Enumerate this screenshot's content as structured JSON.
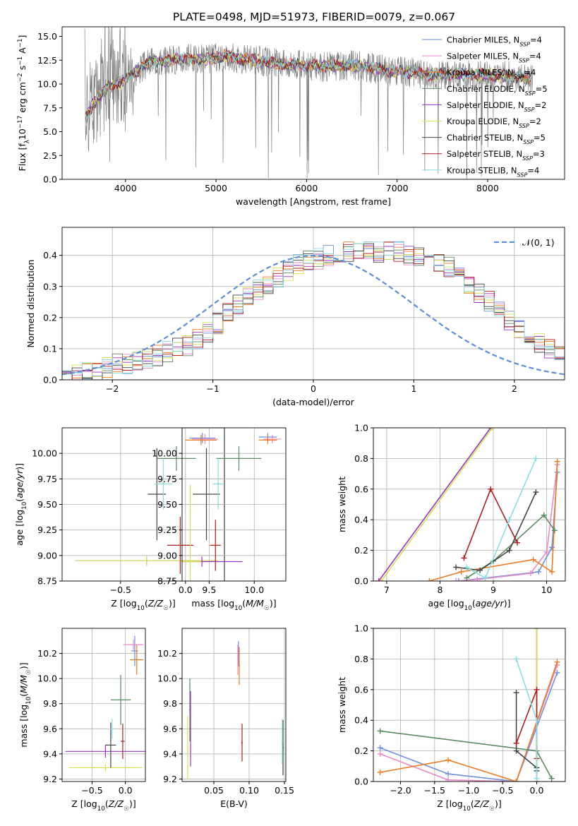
{
  "figure_title": "PLATE=0498, MJD=51973, FIBERID=0079, z=0.067",
  "colors": {
    "Chabrier MILES": "#6a8fe0",
    "Salpeter MILES": "#e88ac8",
    "Kroupa MILES": "#ee7a22",
    "Chabrier ELODIE": "#5a8a5e",
    "Salpeter ELODIE": "#9a32c8",
    "Kroupa ELODIE": "#d7e050",
    "Chabrier STELIB": "#444444",
    "Salpeter STELIB": "#b21a1a",
    "Kroupa STELIB": "#88dde0",
    "data": "#808080",
    "normal": "#5b8fd9"
  },
  "chart_data": [
    {
      "type": "line",
      "id": "spectrum",
      "xlabel": "wavelength [Angstrom, rest frame]",
      "ylabel": "Flux [f_λ10^-17 erg cm^-2 s^-1 A^-1]",
      "xlim": [
        3300,
        8850
      ],
      "ylim": [
        0,
        16
      ],
      "x_ticks": [
        4000,
        5000,
        6000,
        7000,
        8000
      ],
      "y_ticks": [
        0.0,
        2.5,
        5.0,
        7.5,
        10.0,
        12.5,
        15.0
      ],
      "legend_position": "right",
      "legend": [
        {
          "name": "Chabrier MILES",
          "nssp": "4"
        },
        {
          "name": "Salpeter MILES",
          "nssp": "4"
        },
        {
          "name": "Kroupa MILES",
          "nssp": "4"
        },
        {
          "name": "Chabrier ELODIE",
          "nssp": "5"
        },
        {
          "name": "Salpeter ELODIE",
          "nssp": "2"
        },
        {
          "name": "Kroupa ELODIE",
          "nssp": "2"
        },
        {
          "name": "Chabrier STELIB",
          "nssp": "5"
        },
        {
          "name": "Salpeter STELIB",
          "nssp": "3"
        },
        {
          "name": "Kroupa STELIB",
          "nssp": "4"
        }
      ],
      "continuum": [
        [
          3550,
          6.3
        ],
        [
          3650,
          8.0
        ],
        [
          3800,
          9.7
        ],
        [
          3950,
          10.2
        ],
        [
          4100,
          11.2
        ],
        [
          4300,
          12.4
        ],
        [
          4600,
          12.6
        ],
        [
          4900,
          12.6
        ],
        [
          5100,
          12.9
        ],
        [
          5400,
          12.5
        ],
        [
          5800,
          12.1
        ],
        [
          6200,
          11.8
        ],
        [
          6500,
          12.0
        ],
        [
          6700,
          11.7
        ],
        [
          7000,
          11.3
        ],
        [
          7400,
          11.0
        ],
        [
          7700,
          11.0
        ],
        [
          8100,
          10.9
        ],
        [
          8400,
          10.7
        ],
        [
          8500,
          10.6
        ]
      ]
    },
    {
      "type": "histogram",
      "id": "residual-hist",
      "xlabel": "(data-model)/error",
      "ylabel": "Normed distribution",
      "xlim": [
        -2.5,
        2.5
      ],
      "ylim": [
        0,
        0.49
      ],
      "x_ticks": [
        -2,
        -1,
        0,
        1,
        2
      ],
      "y_ticks": [
        0.0,
        0.1,
        0.2,
        0.3,
        0.4
      ],
      "legend_label": "N(0,1)",
      "legend_position": "top-right",
      "bin_width": 0.1,
      "bins_start": -2.5,
      "envelope": [
        0.02,
        0.02,
        0.03,
        0.03,
        0.04,
        0.05,
        0.05,
        0.06,
        0.07,
        0.08,
        0.09,
        0.1,
        0.11,
        0.13,
        0.15,
        0.18,
        0.21,
        0.24,
        0.27,
        0.29,
        0.31,
        0.33,
        0.35,
        0.37,
        0.38,
        0.39,
        0.4,
        0.4,
        0.41,
        0.41,
        0.41,
        0.41,
        0.41,
        0.41,
        0.4,
        0.4,
        0.39,
        0.38,
        0.36,
        0.34,
        0.31,
        0.28,
        0.25,
        0.22,
        0.19,
        0.16,
        0.14,
        0.12,
        0.1,
        0.08,
        0.07,
        0.06,
        0.05,
        0.05,
        0.04,
        0.04,
        0.03,
        0.03,
        0.03,
        0.02
      ],
      "jitter": 0.035
    },
    {
      "type": "scatter",
      "id": "age-vs-Z",
      "xlabel": "Z [log10(Z/Z☉)]",
      "ylabel": "age  [log10(age/yr)]",
      "xlim": [
        -0.95,
        0.3
      ],
      "ylim": [
        8.75,
        10.25
      ],
      "x_ticks": [
        -0.5,
        0.0
      ],
      "y_ticks": [
        8.75,
        9.0,
        9.25,
        9.5,
        9.75,
        10.0
      ],
      "points": [
        {
          "series": "Chabrier MILES",
          "x": 0.13,
          "y": 10.15,
          "xerr": 0.1,
          "yerr": 0.05
        },
        {
          "series": "Salpeter MILES",
          "x": 0.15,
          "y": 10.14,
          "xerr": 0.1,
          "yerr": 0.05
        },
        {
          "series": "Kroupa MILES",
          "x": 0.12,
          "y": 10.13,
          "xerr": 0.12,
          "yerr": 0.05
        },
        {
          "series": "Chabrier ELODIE",
          "x": -0.07,
          "y": 9.95,
          "xerr": 0.15,
          "yerr": 0.12
        },
        {
          "series": "Salpeter ELODIE",
          "x": -0.3,
          "y": 8.95,
          "xerr": 0.55,
          "yerr": 0.05
        },
        {
          "series": "Kroupa ELODIE",
          "x": -0.3,
          "y": 8.95,
          "xerr": 0.55,
          "yerr": 0.05
        },
        {
          "series": "Chabrier STELIB",
          "x": -0.22,
          "y": 9.6,
          "xerr": 0.07,
          "yerr": 0.45
        },
        {
          "series": "Salpeter STELIB",
          "x": -0.04,
          "y": 9.1,
          "xerr": 0.1,
          "yerr": 0.28
        },
        {
          "series": "Kroupa STELIB",
          "x": -0.17,
          "y": 9.7,
          "xerr": 0.07,
          "yerr": 0.25
        }
      ]
    },
    {
      "type": "scatter",
      "id": "age-vs-mass",
      "xlabel": "mass [log10(M/M☉)]",
      "ylabel": "",
      "xlim": [
        9.2,
        10.35
      ],
      "ylim": [
        8.75,
        10.25
      ],
      "x_ticks": [
        9.5,
        10.0
      ],
      "y_ticks": [
        8.75,
        9.0,
        9.25,
        9.5,
        9.75,
        10.0
      ],
      "points": [
        {
          "series": "Chabrier MILES",
          "x": 10.15,
          "y": 10.16,
          "xerr": 0.1,
          "yerr": 0.04
        },
        {
          "series": "Salpeter MILES",
          "x": 10.2,
          "y": 10.14,
          "xerr": 0.1,
          "yerr": 0.04
        },
        {
          "series": "Kroupa MILES",
          "x": 10.15,
          "y": 10.13,
          "xerr": 0.1,
          "yerr": 0.04
        },
        {
          "series": "Chabrier ELODIE",
          "x": 9.83,
          "y": 9.95,
          "xerr": 0.25,
          "yerr": 0.12
        },
        {
          "series": "Salpeter ELODIE",
          "x": 9.42,
          "y": 8.94,
          "xerr": 0.45,
          "yerr": 0.05
        },
        {
          "series": "Kroupa ELODIE",
          "x": 9.29,
          "y": 8.94,
          "xerr": 0.12,
          "yerr": 0.75
        },
        {
          "series": "Chabrier STELIB",
          "x": 9.47,
          "y": 9.6,
          "xerr": 0.15,
          "yerr": 0.45
        },
        {
          "series": "Salpeter STELIB",
          "x": 9.57,
          "y": 9.1,
          "xerr": 0.06,
          "yerr": 0.25
        },
        {
          "series": "Kroupa STELIB",
          "x": 9.6,
          "y": 9.7,
          "xerr": 0.06,
          "yerr": 0.25
        }
      ]
    },
    {
      "type": "line",
      "id": "mass-weight-vs-age",
      "xlabel": "age  [log10(age/yr)]",
      "ylabel": "mass weight",
      "xlim": [
        6.75,
        10.35
      ],
      "ylim": [
        0,
        1.0
      ],
      "x_ticks": [
        7,
        8,
        9,
        10
      ],
      "y_ticks": [
        0.0,
        0.2,
        0.4,
        0.6,
        0.8,
        1.0
      ],
      "series": [
        {
          "name": "Chabrier MILES",
          "x": [
            8.35,
            9.85,
            10.1,
            10.2
          ],
          "y": [
            0.0,
            0.06,
            0.22,
            0.71
          ]
        },
        {
          "name": "Salpeter MILES",
          "x": [
            8.3,
            8.7,
            9.7,
            10.0,
            10.2
          ],
          "y": [
            0.0,
            0.01,
            0.05,
            0.19,
            0.76
          ]
        },
        {
          "name": "Kroupa MILES",
          "x": [
            7.8,
            8.4,
            9.75,
            10.1,
            10.2
          ],
          "y": [
            0.0,
            0.06,
            0.14,
            0.06,
            0.78
          ]
        },
        {
          "name": "Chabrier ELODIE",
          "x": [
            8.5,
            9.0,
            9.95,
            10.15
          ],
          "y": [
            0.02,
            0.13,
            0.43,
            0.33
          ]
        },
        {
          "name": "Salpeter ELODIE",
          "x": [
            6.85,
            8.95
          ],
          "y": [
            0.0,
            1.0
          ]
        },
        {
          "name": "Kroupa ELODIE",
          "x": [
            6.9,
            8.98
          ],
          "y": [
            0.0,
            1.0
          ]
        },
        {
          "name": "Chabrier STELIB",
          "x": [
            8.3,
            8.75,
            9.3,
            9.8
          ],
          "y": [
            0.09,
            0.07,
            0.2,
            0.58
          ]
        },
        {
          "name": "Salpeter STELIB",
          "x": [
            8.45,
            8.95,
            9.45
          ],
          "y": [
            0.15,
            0.6,
            0.25
          ]
        },
        {
          "name": "Kroupa STELIB",
          "x": [
            8.5,
            8.85,
            9.3,
            9.8
          ],
          "y": [
            0.09,
            0.02,
            0.4,
            0.8
          ]
        }
      ]
    },
    {
      "type": "scatter",
      "id": "mass-vs-Z",
      "xlabel": "Z [log10(Z/Z☉)]",
      "ylabel": "mass [log10(M/M☉)]",
      "xlim": [
        -0.95,
        0.3
      ],
      "ylim": [
        9.18,
        10.4
      ],
      "x_ticks": [
        -0.5,
        0.0
      ],
      "y_ticks": [
        9.2,
        9.4,
        9.6,
        9.8,
        10.0,
        10.2
      ],
      "points": [
        {
          "series": "Chabrier MILES",
          "x": 0.14,
          "y": 10.22,
          "xerr": 0.05,
          "yerr": 0.12
        },
        {
          "series": "Salpeter MILES",
          "x": 0.12,
          "y": 10.27,
          "xerr": 0.15,
          "yerr": 0.04
        },
        {
          "series": "Kroupa MILES",
          "x": 0.17,
          "y": 10.15,
          "xerr": 0.1,
          "yerr": 0.12
        },
        {
          "series": "Chabrier ELODIE",
          "x": -0.07,
          "y": 9.83,
          "xerr": 0.15,
          "yerr": 0.2
        },
        {
          "series": "Salpeter ELODIE",
          "x": -0.3,
          "y": 9.42,
          "xerr": 0.6,
          "yerr": 0.05
        },
        {
          "series": "Kroupa ELODIE",
          "x": -0.3,
          "y": 9.29,
          "xerr": 0.55,
          "yerr": 0.03
        },
        {
          "series": "Chabrier STELIB",
          "x": -0.22,
          "y": 9.47,
          "xerr": 0.08,
          "yerr": 0.18
        },
        {
          "series": "Salpeter STELIB",
          "x": -0.04,
          "y": 9.5,
          "xerr": 0.03,
          "yerr": 0.14
        },
        {
          "series": "Kroupa STELIB",
          "x": -0.2,
          "y": 9.6,
          "xerr": 0.03,
          "yerr": 0.08
        }
      ]
    },
    {
      "type": "scatter",
      "id": "mass-vs-ebv",
      "xlabel": "E(B-V)",
      "ylabel": "",
      "xlim": [
        0.005,
        0.152
      ],
      "ylim": [
        9.18,
        10.4
      ],
      "x_ticks": [
        0.05,
        0.1,
        0.15
      ],
      "y_ticks": [
        9.2,
        9.4,
        9.6,
        9.8,
        10.0,
        10.2
      ],
      "points": [
        {
          "series": "Chabrier MILES",
          "x": 0.085,
          "y": 10.2,
          "xerr": 0.001,
          "yerr": 0.1
        },
        {
          "series": "Salpeter MILES",
          "x": 0.084,
          "y": 10.15,
          "xerr": 0.001,
          "yerr": 0.12
        },
        {
          "series": "Kroupa MILES",
          "x": 0.086,
          "y": 10.1,
          "xerr": 0.001,
          "yerr": 0.15
        },
        {
          "series": "Chabrier ELODIE",
          "x": 0.016,
          "y": 9.75,
          "xerr": 0.001,
          "yerr": 0.25
        },
        {
          "series": "Salpeter ELODIE",
          "x": 0.017,
          "y": 9.6,
          "xerr": 0.001,
          "yerr": 0.3
        },
        {
          "series": "Kroupa ELODIE",
          "x": 0.013,
          "y": 9.45,
          "xerr": 0.001,
          "yerr": 0.25
        },
        {
          "series": "Chabrier STELIB",
          "x": 0.148,
          "y": 9.45,
          "xerr": 0.001,
          "yerr": 0.22
        },
        {
          "series": "Salpeter STELIB",
          "x": 0.09,
          "y": 9.49,
          "xerr": 0.001,
          "yerr": 0.15
        },
        {
          "series": "Kroupa STELIB",
          "x": 0.147,
          "y": 9.5,
          "xerr": 0.001,
          "yerr": 0.18
        }
      ]
    },
    {
      "type": "line",
      "id": "mass-weight-vs-Z",
      "xlabel": "Z [log10(Z/Z☉)]",
      "ylabel": "mass weight",
      "xlim": [
        -2.4,
        0.42
      ],
      "ylim": [
        0,
        1.0
      ],
      "x_ticks": [
        -2.0,
        -1.5,
        -1.0,
        -0.5,
        0.0
      ],
      "y_ticks": [
        0.0,
        0.2,
        0.4,
        0.6,
        0.8,
        1.0
      ],
      "series": [
        {
          "name": "Chabrier MILES",
          "x": [
            -2.3,
            -1.3,
            -0.3,
            0.3
          ],
          "y": [
            0.22,
            0.05,
            0.0,
            0.71
          ]
        },
        {
          "name": "Salpeter MILES",
          "x": [
            -2.3,
            -1.3,
            -0.3,
            0.3
          ],
          "y": [
            0.18,
            0.01,
            0.0,
            0.76
          ]
        },
        {
          "name": "Kroupa MILES",
          "x": [
            -2.3,
            -1.3,
            -0.3,
            0.3
          ],
          "y": [
            0.06,
            0.14,
            0.0,
            0.78
          ]
        },
        {
          "name": "Chabrier ELODIE",
          "x": [
            -2.3,
            0.0,
            0.22
          ],
          "y": [
            0.33,
            0.2,
            0.02
          ]
        },
        {
          "name": "Salpeter ELODIE",
          "x": [
            0.0,
            0.0
          ],
          "y": [
            0.0,
            1.0
          ]
        },
        {
          "name": "Kroupa ELODIE",
          "x": [
            0.0,
            0.0
          ],
          "y": [
            0.0,
            1.0
          ]
        },
        {
          "name": "Chabrier STELIB",
          "x": [
            -0.3,
            -0.3,
            0.0,
            0.0
          ],
          "y": [
            0.58,
            0.2,
            0.09,
            0.07
          ]
        },
        {
          "name": "Salpeter STELIB",
          "x": [
            -0.3,
            0.0,
            0.0
          ],
          "y": [
            0.25,
            0.6,
            0.15
          ]
        },
        {
          "name": "Kroupa STELIB",
          "x": [
            -0.3,
            0.0,
            0.0
          ],
          "y": [
            0.8,
            0.4,
            0.02
          ]
        }
      ]
    }
  ]
}
